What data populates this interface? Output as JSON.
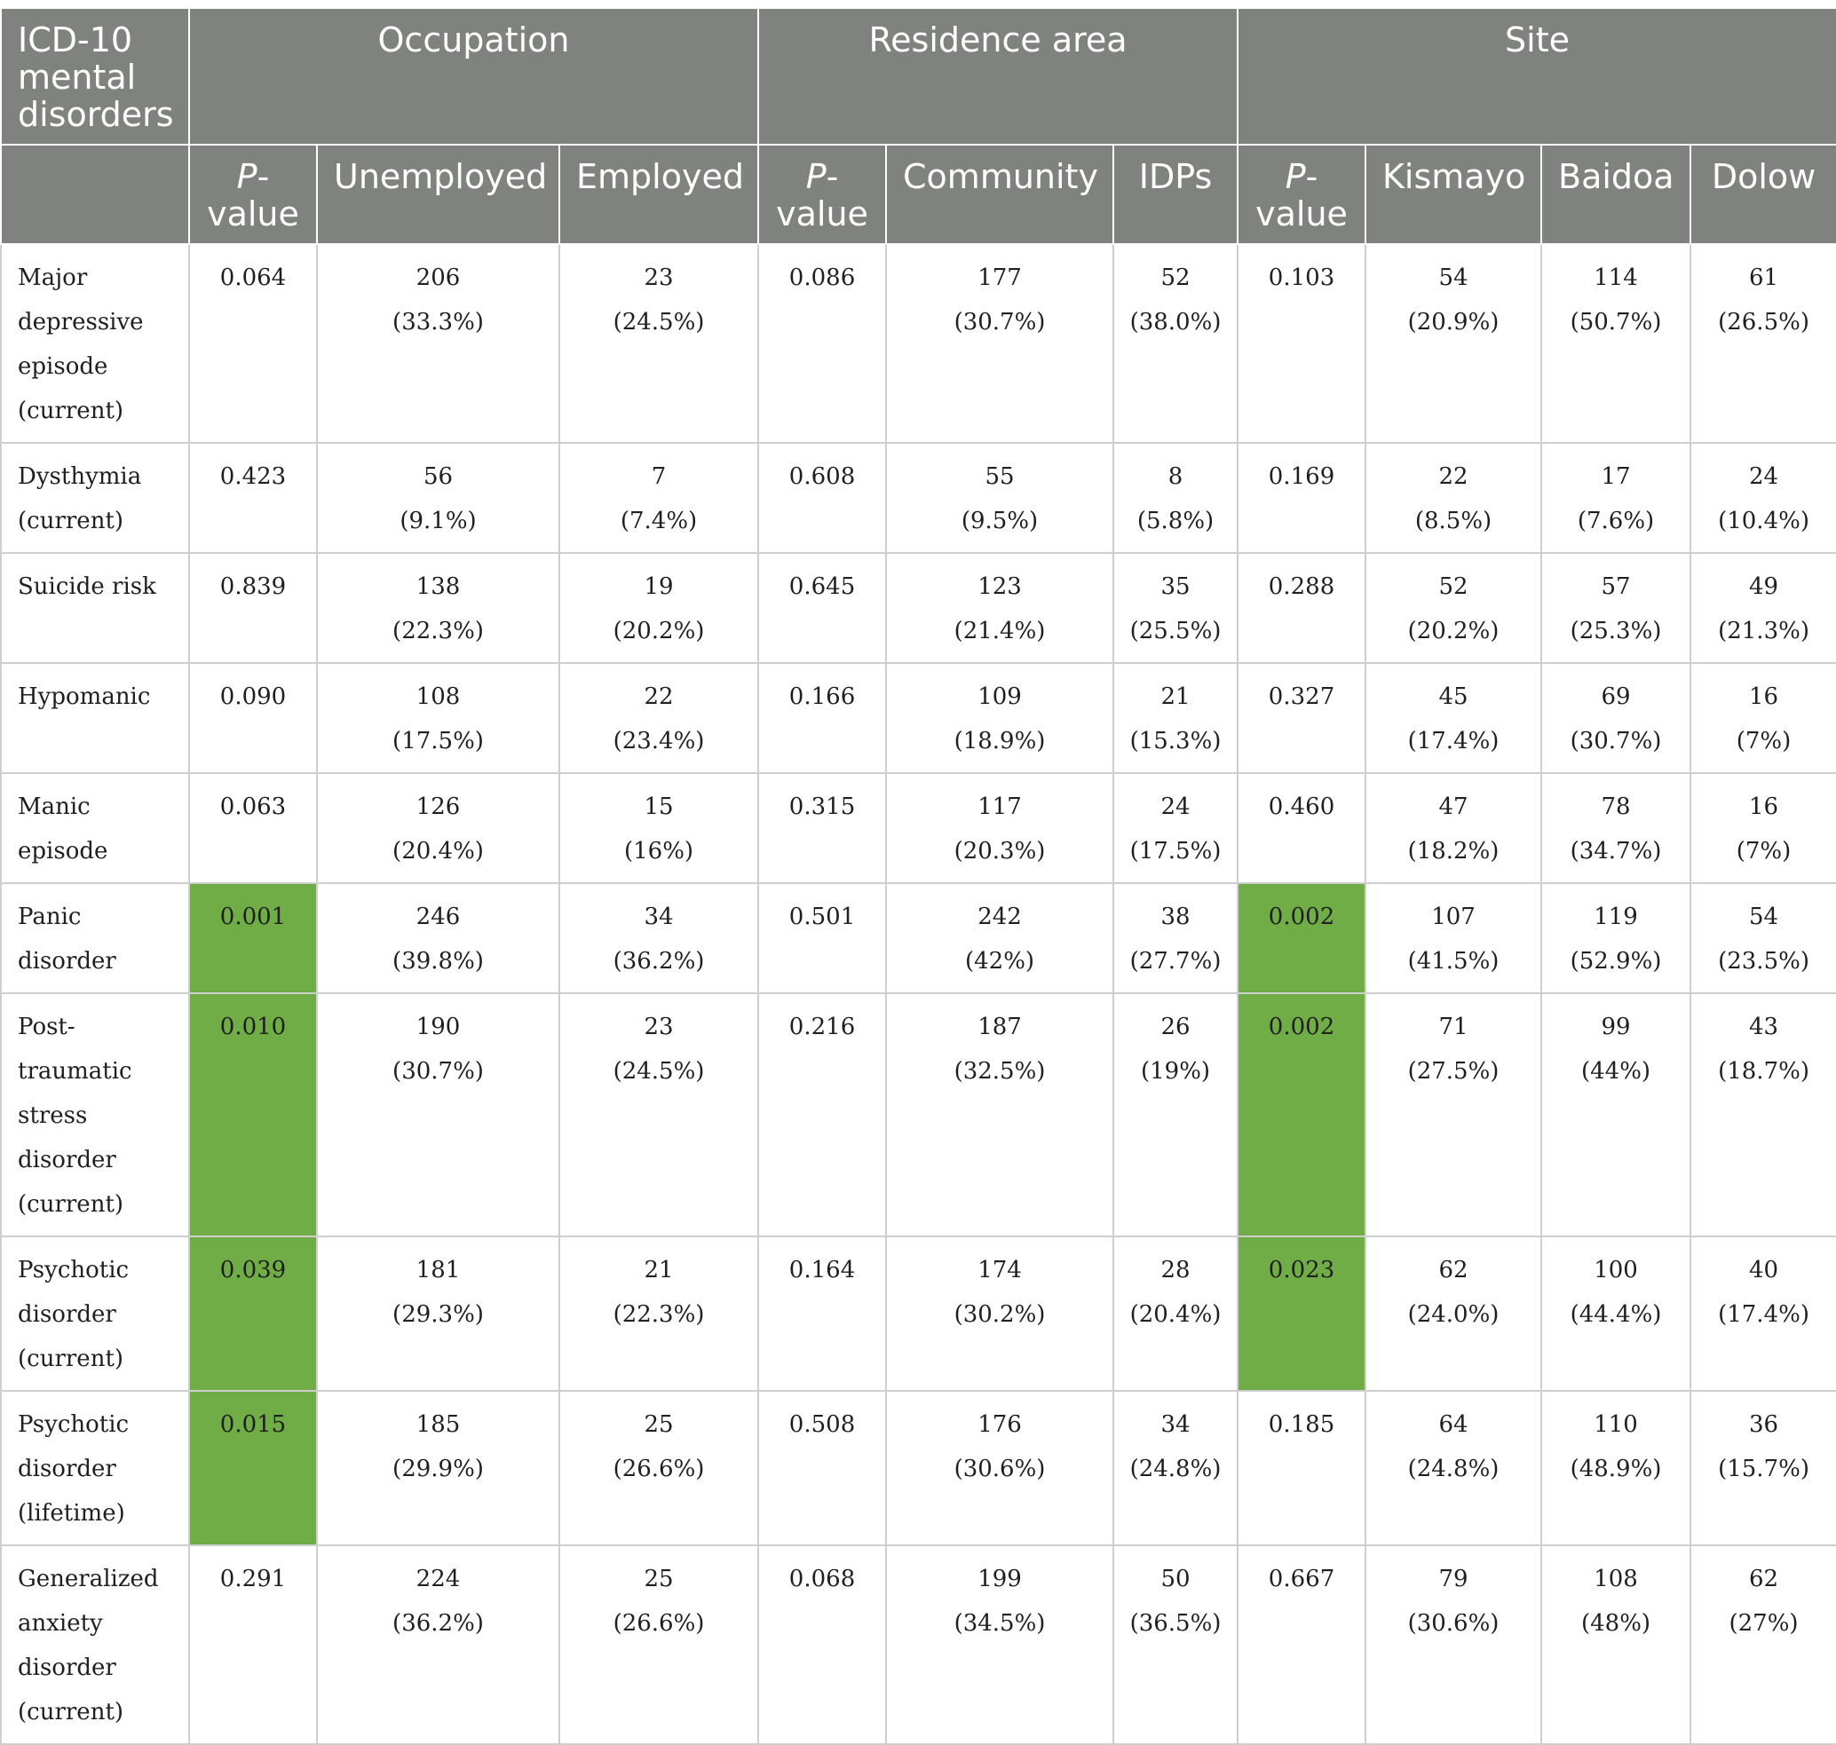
{
  "header": {
    "first_col": [
      "ICD-10",
      "mental",
      "disorders"
    ],
    "groups": {
      "occupation": "Occupation",
      "residence": "Residence area",
      "site": "Site"
    },
    "pvalue_p": "P",
    "pvalue_rest": "-",
    "pvalue_word": "value",
    "columns": {
      "unemployed": "Unemployed",
      "employed": "Employed",
      "community": "Community",
      "idps": "IDPs",
      "kismayo": "Kismayo",
      "baidoa": "Baidoa",
      "dolow": "Dolow"
    }
  },
  "colors": {
    "header_bg": "#80827f",
    "significant": "#70ad47",
    "border": "#cfcfcf"
  },
  "rows": [
    {
      "label": [
        "Major",
        "depressive",
        "episode",
        "(current)"
      ],
      "occ_p": "0.064",
      "occ_p_sig": false,
      "unemployed": {
        "n": "206",
        "pct": "(33.3%)"
      },
      "employed": {
        "n": "23",
        "pct": "(24.5%)"
      },
      "res_p": "0.086",
      "res_p_sig": false,
      "community": {
        "n": "177",
        "pct": "(30.7%)"
      },
      "idps": {
        "n": "52",
        "pct": "(38.0%)"
      },
      "site_p": "0.103",
      "site_p_sig": false,
      "kismayo": {
        "n": "54",
        "pct": "(20.9%)"
      },
      "baidoa": {
        "n": "114",
        "pct": "(50.7%)"
      },
      "dolow": {
        "n": "61",
        "pct": "(26.5%)"
      }
    },
    {
      "label": [
        "Dysthymia",
        "(current)"
      ],
      "occ_p": "0.423",
      "occ_p_sig": false,
      "unemployed": {
        "n": "56",
        "pct": "(9.1%)"
      },
      "employed": {
        "n": "7",
        "pct": "(7.4%)"
      },
      "res_p": "0.608",
      "res_p_sig": false,
      "community": {
        "n": "55",
        "pct": "(9.5%)"
      },
      "idps": {
        "n": "8",
        "pct": "(5.8%)"
      },
      "site_p": "0.169",
      "site_p_sig": false,
      "kismayo": {
        "n": "22",
        "pct": "(8.5%)"
      },
      "baidoa": {
        "n": "17",
        "pct": "(7.6%)"
      },
      "dolow": {
        "n": "24",
        "pct": "(10.4%)"
      }
    },
    {
      "label": [
        "Suicide risk"
      ],
      "occ_p": "0.839",
      "occ_p_sig": false,
      "unemployed": {
        "n": "138",
        "pct": "(22.3%)"
      },
      "employed": {
        "n": "19",
        "pct": "(20.2%)"
      },
      "res_p": "0.645",
      "res_p_sig": false,
      "community": {
        "n": "123",
        "pct": "(21.4%)"
      },
      "idps": {
        "n": "35",
        "pct": "(25.5%)"
      },
      "site_p": "0.288",
      "site_p_sig": false,
      "kismayo": {
        "n": "52",
        "pct": "(20.2%)"
      },
      "baidoa": {
        "n": "57",
        "pct": "(25.3%)"
      },
      "dolow": {
        "n": "49",
        "pct": "(21.3%)"
      }
    },
    {
      "label": [
        "Hypomanic"
      ],
      "occ_p": "0.090",
      "occ_p_sig": false,
      "unemployed": {
        "n": "108",
        "pct": "(17.5%)"
      },
      "employed": {
        "n": "22",
        "pct": "(23.4%)"
      },
      "res_p": "0.166",
      "res_p_sig": false,
      "community": {
        "n": "109",
        "pct": "(18.9%)"
      },
      "idps": {
        "n": "21",
        "pct": "(15.3%)"
      },
      "site_p": "0.327",
      "site_p_sig": false,
      "kismayo": {
        "n": "45",
        "pct": "(17.4%)"
      },
      "baidoa": {
        "n": "69",
        "pct": "(30.7%)"
      },
      "dolow": {
        "n": "16",
        "pct": "(7%)"
      }
    },
    {
      "label": [
        "Manic episode"
      ],
      "occ_p": "0.063",
      "occ_p_sig": false,
      "unemployed": {
        "n": "126",
        "pct": "(20.4%)"
      },
      "employed": {
        "n": "15",
        "pct": "(16%)"
      },
      "res_p": "0.315",
      "res_p_sig": false,
      "community": {
        "n": "117",
        "pct": "(20.3%)"
      },
      "idps": {
        "n": "24",
        "pct": "(17.5%)"
      },
      "site_p": "0.460",
      "site_p_sig": false,
      "kismayo": {
        "n": "47",
        "pct": "(18.2%)"
      },
      "baidoa": {
        "n": "78",
        "pct": "(34.7%)"
      },
      "dolow": {
        "n": "16",
        "pct": "(7%)"
      }
    },
    {
      "label": [
        "Panic disorder"
      ],
      "occ_p": "0.001",
      "occ_p_sig": true,
      "unemployed": {
        "n": "246",
        "pct": "(39.8%)"
      },
      "employed": {
        "n": "34",
        "pct": "(36.2%)"
      },
      "res_p": "0.501",
      "res_p_sig": false,
      "community": {
        "n": "242",
        "pct": "(42%)"
      },
      "idps": {
        "n": "38",
        "pct": "(27.7%)"
      },
      "site_p": "0.002",
      "site_p_sig": true,
      "kismayo": {
        "n": "107",
        "pct": "(41.5%)"
      },
      "baidoa": {
        "n": "119",
        "pct": "(52.9%)"
      },
      "dolow": {
        "n": "54",
        "pct": "(23.5%)"
      }
    },
    {
      "label": [
        "Post-traumatic",
        "stress disorder",
        "(current)"
      ],
      "occ_p": "0.010",
      "occ_p_sig": true,
      "unemployed": {
        "n": "190",
        "pct": "(30.7%)"
      },
      "employed": {
        "n": "23",
        "pct": "(24.5%)"
      },
      "res_p": "0.216",
      "res_p_sig": false,
      "community": {
        "n": "187",
        "pct": "(32.5%)"
      },
      "idps": {
        "n": "26",
        "pct": "(19%)"
      },
      "site_p": "0.002",
      "site_p_sig": true,
      "kismayo": {
        "n": "71",
        "pct": "(27.5%)"
      },
      "baidoa": {
        "n": "99",
        "pct": "(44%)"
      },
      "dolow": {
        "n": "43",
        "pct": "(18.7%)"
      }
    },
    {
      "label": [
        "Psychotic",
        "disorder",
        "(current)"
      ],
      "occ_p": "0.039",
      "occ_p_sig": true,
      "unemployed": {
        "n": "181",
        "pct": "(29.3%)"
      },
      "employed": {
        "n": "21",
        "pct": "(22.3%)"
      },
      "res_p": "0.164",
      "res_p_sig": false,
      "community": {
        "n": "174",
        "pct": "(30.2%)"
      },
      "idps": {
        "n": "28",
        "pct": "(20.4%)"
      },
      "site_p": "0.023",
      "site_p_sig": true,
      "kismayo": {
        "n": "62",
        "pct": "(24.0%)"
      },
      "baidoa": {
        "n": "100",
        "pct": "(44.4%)"
      },
      "dolow": {
        "n": "40",
        "pct": "(17.4%)"
      }
    },
    {
      "label": [
        "Psychotic",
        "disorder",
        "(lifetime)"
      ],
      "occ_p": "0.015",
      "occ_p_sig": true,
      "unemployed": {
        "n": "185",
        "pct": "(29.9%)"
      },
      "employed": {
        "n": "25",
        "pct": "(26.6%)"
      },
      "res_p": "0.508",
      "res_p_sig": false,
      "community": {
        "n": "176",
        "pct": "(30.6%)"
      },
      "idps": {
        "n": "34",
        "pct": "(24.8%)"
      },
      "site_p": "0.185",
      "site_p_sig": false,
      "kismayo": {
        "n": "64",
        "pct": "(24.8%)"
      },
      "baidoa": {
        "n": "110",
        "pct": "(48.9%)"
      },
      "dolow": {
        "n": "36",
        "pct": "(15.7%)"
      }
    },
    {
      "label": [
        "Generalized",
        "anxiety",
        "disorder",
        "(current)"
      ],
      "occ_p": "0.291",
      "occ_p_sig": false,
      "unemployed": {
        "n": "224",
        "pct": "(36.2%)"
      },
      "employed": {
        "n": "25",
        "pct": "(26.6%)"
      },
      "res_p": "0.068",
      "res_p_sig": false,
      "community": {
        "n": "199",
        "pct": "(34.5%)"
      },
      "idps": {
        "n": "50",
        "pct": "(36.5%)"
      },
      "site_p": "0.667",
      "site_p_sig": false,
      "kismayo": {
        "n": "79",
        "pct": "(30.6%)"
      },
      "baidoa": {
        "n": "108",
        "pct": "(48%)"
      },
      "dolow": {
        "n": "62",
        "pct": "(27%)"
      }
    }
  ]
}
